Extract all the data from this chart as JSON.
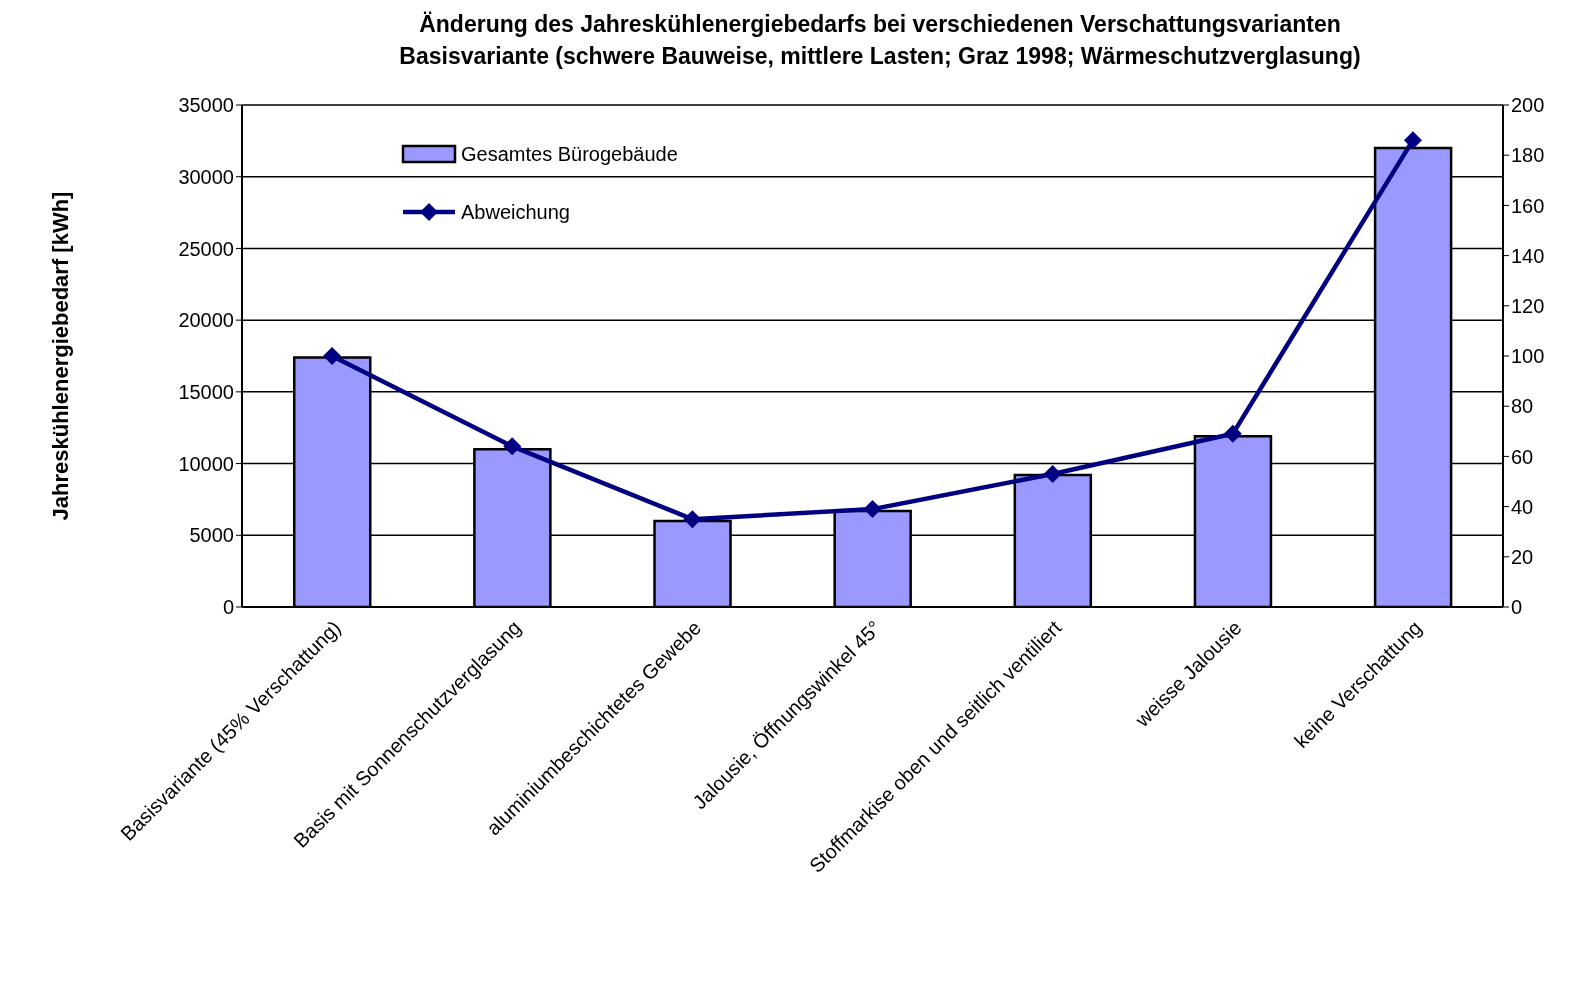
{
  "chart_data": {
    "type": "bar",
    "title": "Änderung des Jahreskühlenergiebedarfs bei verschiedenen Verschattungsvarianten",
    "subtitle": "Basisvariante (schwere Bauweise, mittlere Lasten; Graz 1998; Wärmeschutzverglasung)",
    "ylabel": "Jahreskühlenergiebedarf [kWh]",
    "categories": [
      "Basisvariante (45% Verschattung)",
      "Basis mit Sonnenschutzverglasung",
      "aluminiumbeschichtetes Gewebe",
      "Jalousie, Öffnungswinkel 45°",
      "Stoffmarkise oben und seitlich ventiliert",
      "weisse Jalousie",
      "keine Verschattung"
    ],
    "series": [
      {
        "name": "Gesamtes Bürogebäude",
        "type": "bar",
        "color": "#9999ff",
        "values": [
          17400,
          11000,
          6000,
          6700,
          9200,
          11900,
          32000
        ]
      },
      {
        "name": "Abweichung",
        "type": "line",
        "axis": "y2",
        "color": "#000080",
        "marker": "diamond",
        "values": [
          100,
          64,
          35,
          39,
          53,
          69,
          186
        ]
      }
    ],
    "ylim": [
      0,
      35000
    ],
    "yticks": [
      0,
      5000,
      10000,
      15000,
      20000,
      25000,
      30000,
      35000
    ],
    "y2lim": [
      0,
      200
    ],
    "y2ticks": [
      0,
      20,
      40,
      60,
      80,
      100,
      120,
      140,
      160,
      180,
      200
    ],
    "grid": "y",
    "legend": "top left"
  }
}
